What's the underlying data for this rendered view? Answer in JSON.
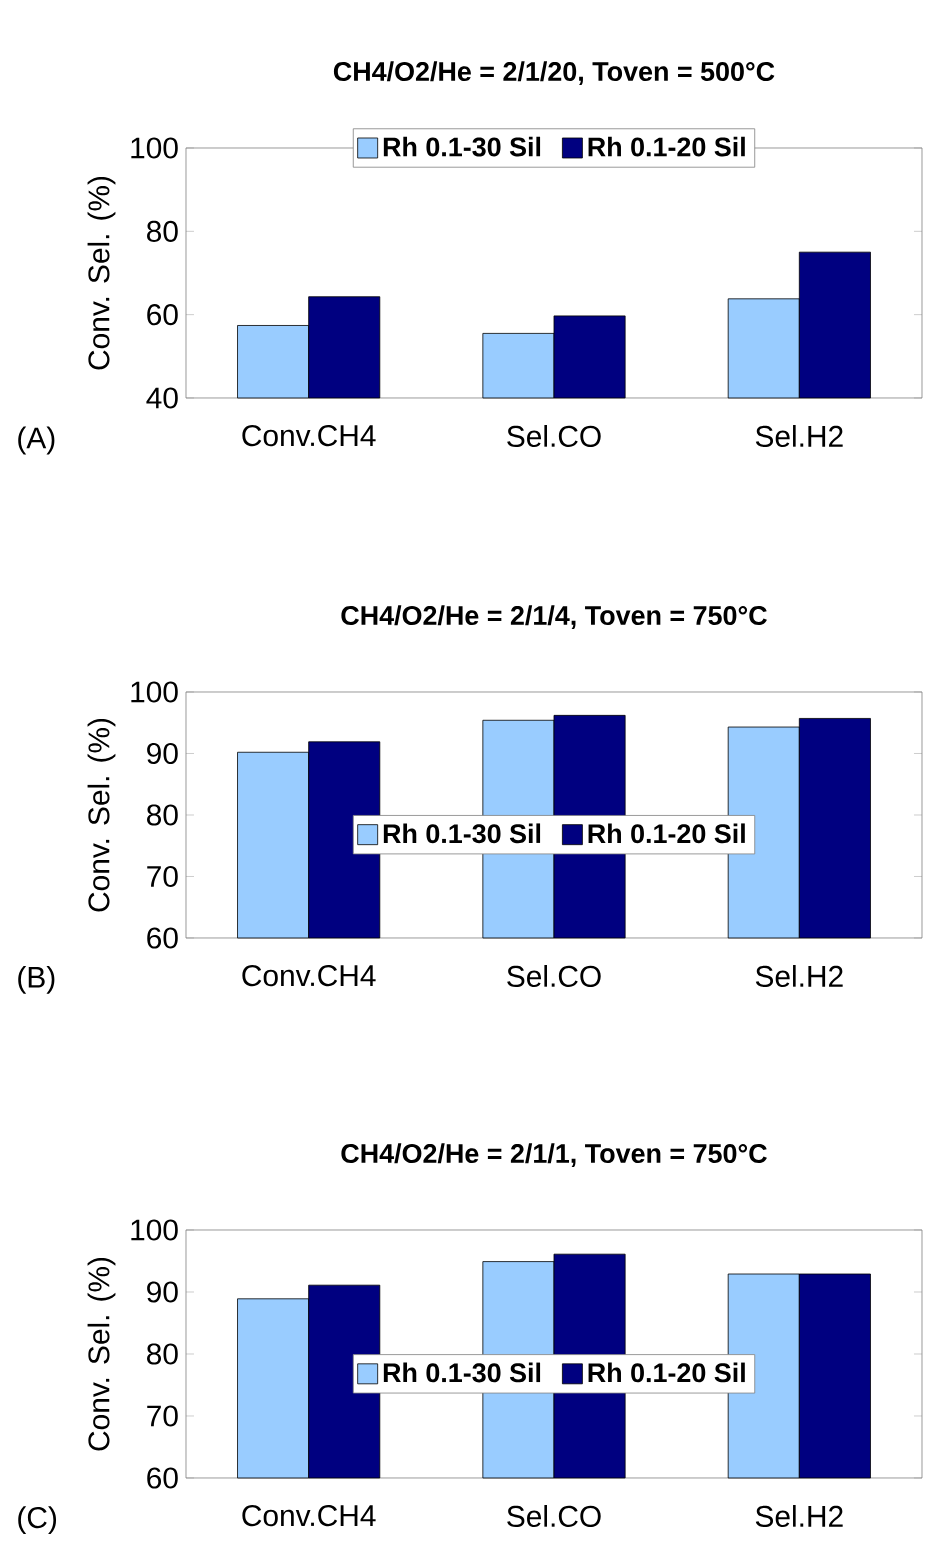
{
  "chart_data": [
    {
      "type": "bar",
      "title": "CH4/O2/He = 2/1/20, Toven = 500°C",
      "ylabel": "Conv. Sel. (%)",
      "annotations": [
        "(A)"
      ],
      "categories": [
        "Conv.CH4",
        "Sel.CO",
        "Sel.H2"
      ],
      "ylim": [
        40,
        100
      ],
      "yticks": [
        40,
        60,
        80,
        100
      ],
      "legend": "top",
      "series": [
        {
          "name": "Rh 0.1-30 Sil",
          "color": "#99ccff",
          "values": [
            57.4,
            55.5,
            63.8
          ]
        },
        {
          "name": "Rh 0.1-20 Sil",
          "color": "#000080",
          "values": [
            64.3,
            59.7,
            75
          ]
        }
      ]
    },
    {
      "type": "bar",
      "title": "CH4/O2/He = 2/1/4, Toven = 750°C",
      "ylabel": "Conv. Sel. (%)",
      "annotations": [
        "(B)"
      ],
      "categories": [
        "Conv.CH4",
        "Sel.CO",
        "Sel.H2"
      ],
      "ylim": [
        60,
        100
      ],
      "yticks": [
        60,
        70,
        80,
        90,
        100
      ],
      "legend": "center",
      "series": [
        {
          "name": "Rh 0.1-30 Sil",
          "color": "#99ccff",
          "values": [
            90.2,
            95.4,
            94.3
          ]
        },
        {
          "name": "Rh 0.1-20 Sil",
          "color": "#000080",
          "values": [
            91.9,
            96.2,
            95.7
          ]
        }
      ]
    },
    {
      "type": "bar",
      "title": "CH4/O2/He = 2/1/1, Toven = 750°C",
      "ylabel": "Conv. Sel. (%)",
      "annotations": [
        "(C)"
      ],
      "categories": [
        "Conv.CH4",
        "Sel.CO",
        "Sel.H2"
      ],
      "ylim": [
        60,
        100
      ],
      "yticks": [
        60,
        70,
        80,
        90,
        100
      ],
      "legend": "center",
      "series": [
        {
          "name": "Rh 0.1-30 Sil",
          "color": "#99ccff",
          "values": [
            88.9,
            94.9,
            92.9
          ]
        },
        {
          "name": "Rh 0.1-20 Sil",
          "color": "#000080",
          "values": [
            91.1,
            96.1,
            92.9
          ]
        }
      ]
    }
  ]
}
